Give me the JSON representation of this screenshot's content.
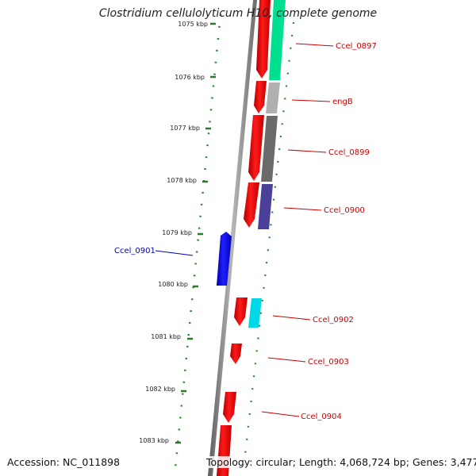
{
  "header": {
    "title": "Clostridium cellulolyticum H10, complete genome"
  },
  "scale": {
    "labels": [
      "1075 kbp",
      "1076 kbp",
      "1077 kbp",
      "1078 kbp",
      "1079 kbp",
      "1080 kbp",
      "1081 kbp",
      "1082 kbp",
      "1083 kbp"
    ]
  },
  "genes": [
    {
      "name": "Ccel_0897",
      "strand": "forward",
      "color": "#00e090"
    },
    {
      "name": "engB",
      "strand": "forward",
      "color": "#b0b0b0"
    },
    {
      "name": "Ccel_0899",
      "strand": "forward",
      "color": "#6a6a6a"
    },
    {
      "name": "Ccel_0900",
      "strand": "forward",
      "color": "#4a3f99"
    },
    {
      "name": "Ccel_0901",
      "strand": "reverse",
      "color": "#0000ee"
    },
    {
      "name": "Ccel_0902",
      "strand": "forward",
      "color": "#00d8e8"
    },
    {
      "name": "Ccel_0903",
      "strand": "forward",
      "color": "#ee0000"
    },
    {
      "name": "Ccel_0904",
      "strand": "forward",
      "color": "#ee0000"
    }
  ],
  "colors": {
    "cds": "#ee0000",
    "backbone": "#808080",
    "scale": "#2a8a2a",
    "label_fwd": "#cc0000",
    "label_rev": "#0000bb"
  },
  "footer": {
    "accession_label": "Accession:",
    "accession": "NC_011898",
    "topology_label": "Topology:",
    "topology": "circular;",
    "length_label": "Length:",
    "length": "4,068,724 bp;",
    "genes_label": "Genes:",
    "genes": "3,477"
  }
}
